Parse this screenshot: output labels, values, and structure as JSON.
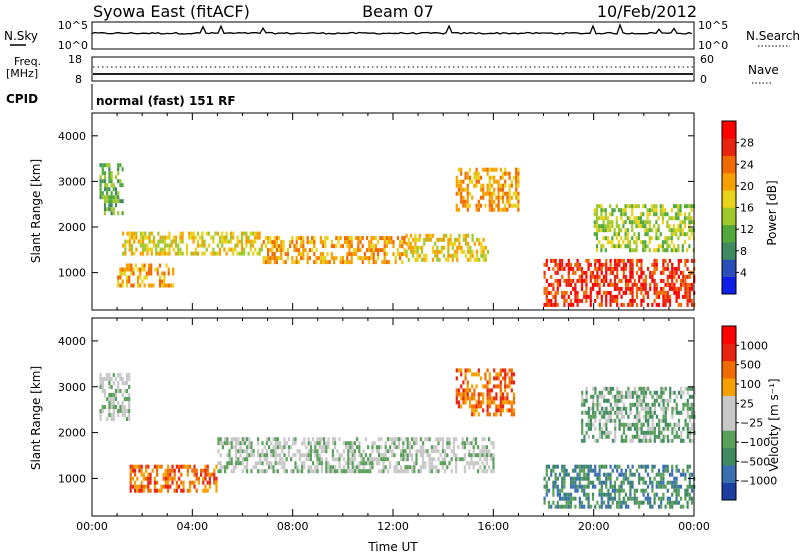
{
  "header": {
    "station": "Syowa East (fitACF)",
    "beam": "Beam 07",
    "date": "10/Feb/2012"
  },
  "chart_data": [
    {
      "type": "line",
      "panel": "noise",
      "left_label": "N.Sky",
      "right_label": "N.Search",
      "left_ticks": [
        "10^5",
        "10^0"
      ],
      "right_ticks": [
        "10^5",
        "10^0"
      ],
      "yscale": "log",
      "baseline": "10^4"
    },
    {
      "type": "line",
      "panel": "frequency-nave",
      "left_label_1": "Freq.",
      "left_label_2": "[MHz]",
      "right_label": "Nave",
      "left_ticks": [
        "18",
        "8"
      ],
      "right_ticks": [
        "60",
        "0"
      ],
      "freq_value": 11,
      "nave_value": 40
    },
    {
      "type": "table",
      "panel": "cpid",
      "label": "CPID",
      "value": "normal (fast) 151 RF"
    },
    {
      "type": "heatmap",
      "panel": "power",
      "ylabel": "Slant Range [km]",
      "ylim": [
        180,
        4500
      ],
      "yticks": [
        "4000",
        "3000",
        "2000",
        "1000"
      ],
      "colorbar": {
        "label": "Power [dB]",
        "ticks": [
          "28",
          "24",
          "20",
          "16",
          "12",
          "8",
          "4"
        ],
        "colors": [
          "#0c1ee8",
          "#2a4fb8",
          "#3f8a5e",
          "#52a83b",
          "#a0c82c",
          "#e8d21a",
          "#f5a000",
          "#f06a00",
          "#e8230f",
          "#ff0000"
        ]
      },
      "regions": [
        {
          "x": [
            0.3,
            1.2
          ],
          "y": [
            2300,
            3400
          ],
          "level": 3
        },
        {
          "x": [
            1.2,
            6.8
          ],
          "y": [
            1400,
            1900
          ],
          "level": 5
        },
        {
          "x": [
            1.0,
            3.2
          ],
          "y": [
            700,
            1200
          ],
          "level": 6
        },
        {
          "x": [
            6.8,
            12.5
          ],
          "y": [
            1200,
            1800
          ],
          "level": 6
        },
        {
          "x": [
            12.5,
            15.8
          ],
          "y": [
            1300,
            1850
          ],
          "level": 5
        },
        {
          "x": [
            14.5,
            17.0
          ],
          "y": [
            2400,
            3300
          ],
          "level": 6
        },
        {
          "x": [
            18.0,
            24.0
          ],
          "y": [
            300,
            1300
          ],
          "level": 8
        },
        {
          "x": [
            20.0,
            24.0
          ],
          "y": [
            1500,
            2500
          ],
          "level": 4
        }
      ]
    },
    {
      "type": "heatmap",
      "panel": "velocity",
      "ylabel": "Slant Range [km]",
      "xlabel": "Time UT",
      "ylim": [
        180,
        4500
      ],
      "xlim": [
        0,
        24
      ],
      "yticks": [
        "4000",
        "3000",
        "2000",
        "1000"
      ],
      "xticks": [
        "00:00",
        "04:00",
        "08:00",
        "12:00",
        "16:00",
        "20:00",
        "00:00"
      ],
      "colorbar": {
        "label": "Velocity [m s⁻¹]",
        "ticks": [
          "1000",
          "500",
          "100",
          "25",
          "−25",
          "−100",
          "−500",
          "−1000"
        ],
        "colors": [
          "#1a3fa0",
          "#3a6fb0",
          "#3f8a5e",
          "#5aa05a",
          "#c8c8c8",
          "#c8c8c8",
          "#f5a000",
          "#f06a00",
          "#e8230f",
          "#ff0000"
        ]
      },
      "regions": [
        {
          "x": [
            0.3,
            1.5
          ],
          "y": [
            2300,
            3300
          ],
          "level": 4
        },
        {
          "x": [
            1.5,
            5.0
          ],
          "y": [
            700,
            1300
          ],
          "level": 7
        },
        {
          "x": [
            5.0,
            16.0
          ],
          "y": [
            1200,
            1900
          ],
          "level": 4
        },
        {
          "x": [
            14.5,
            16.8
          ],
          "y": [
            2400,
            3400
          ],
          "level": 7
        },
        {
          "x": [
            18.0,
            24.0
          ],
          "y": [
            400,
            1300
          ],
          "level": 2
        },
        {
          "x": [
            19.5,
            24.0
          ],
          "y": [
            1800,
            3000
          ],
          "level": 3
        }
      ]
    }
  ]
}
